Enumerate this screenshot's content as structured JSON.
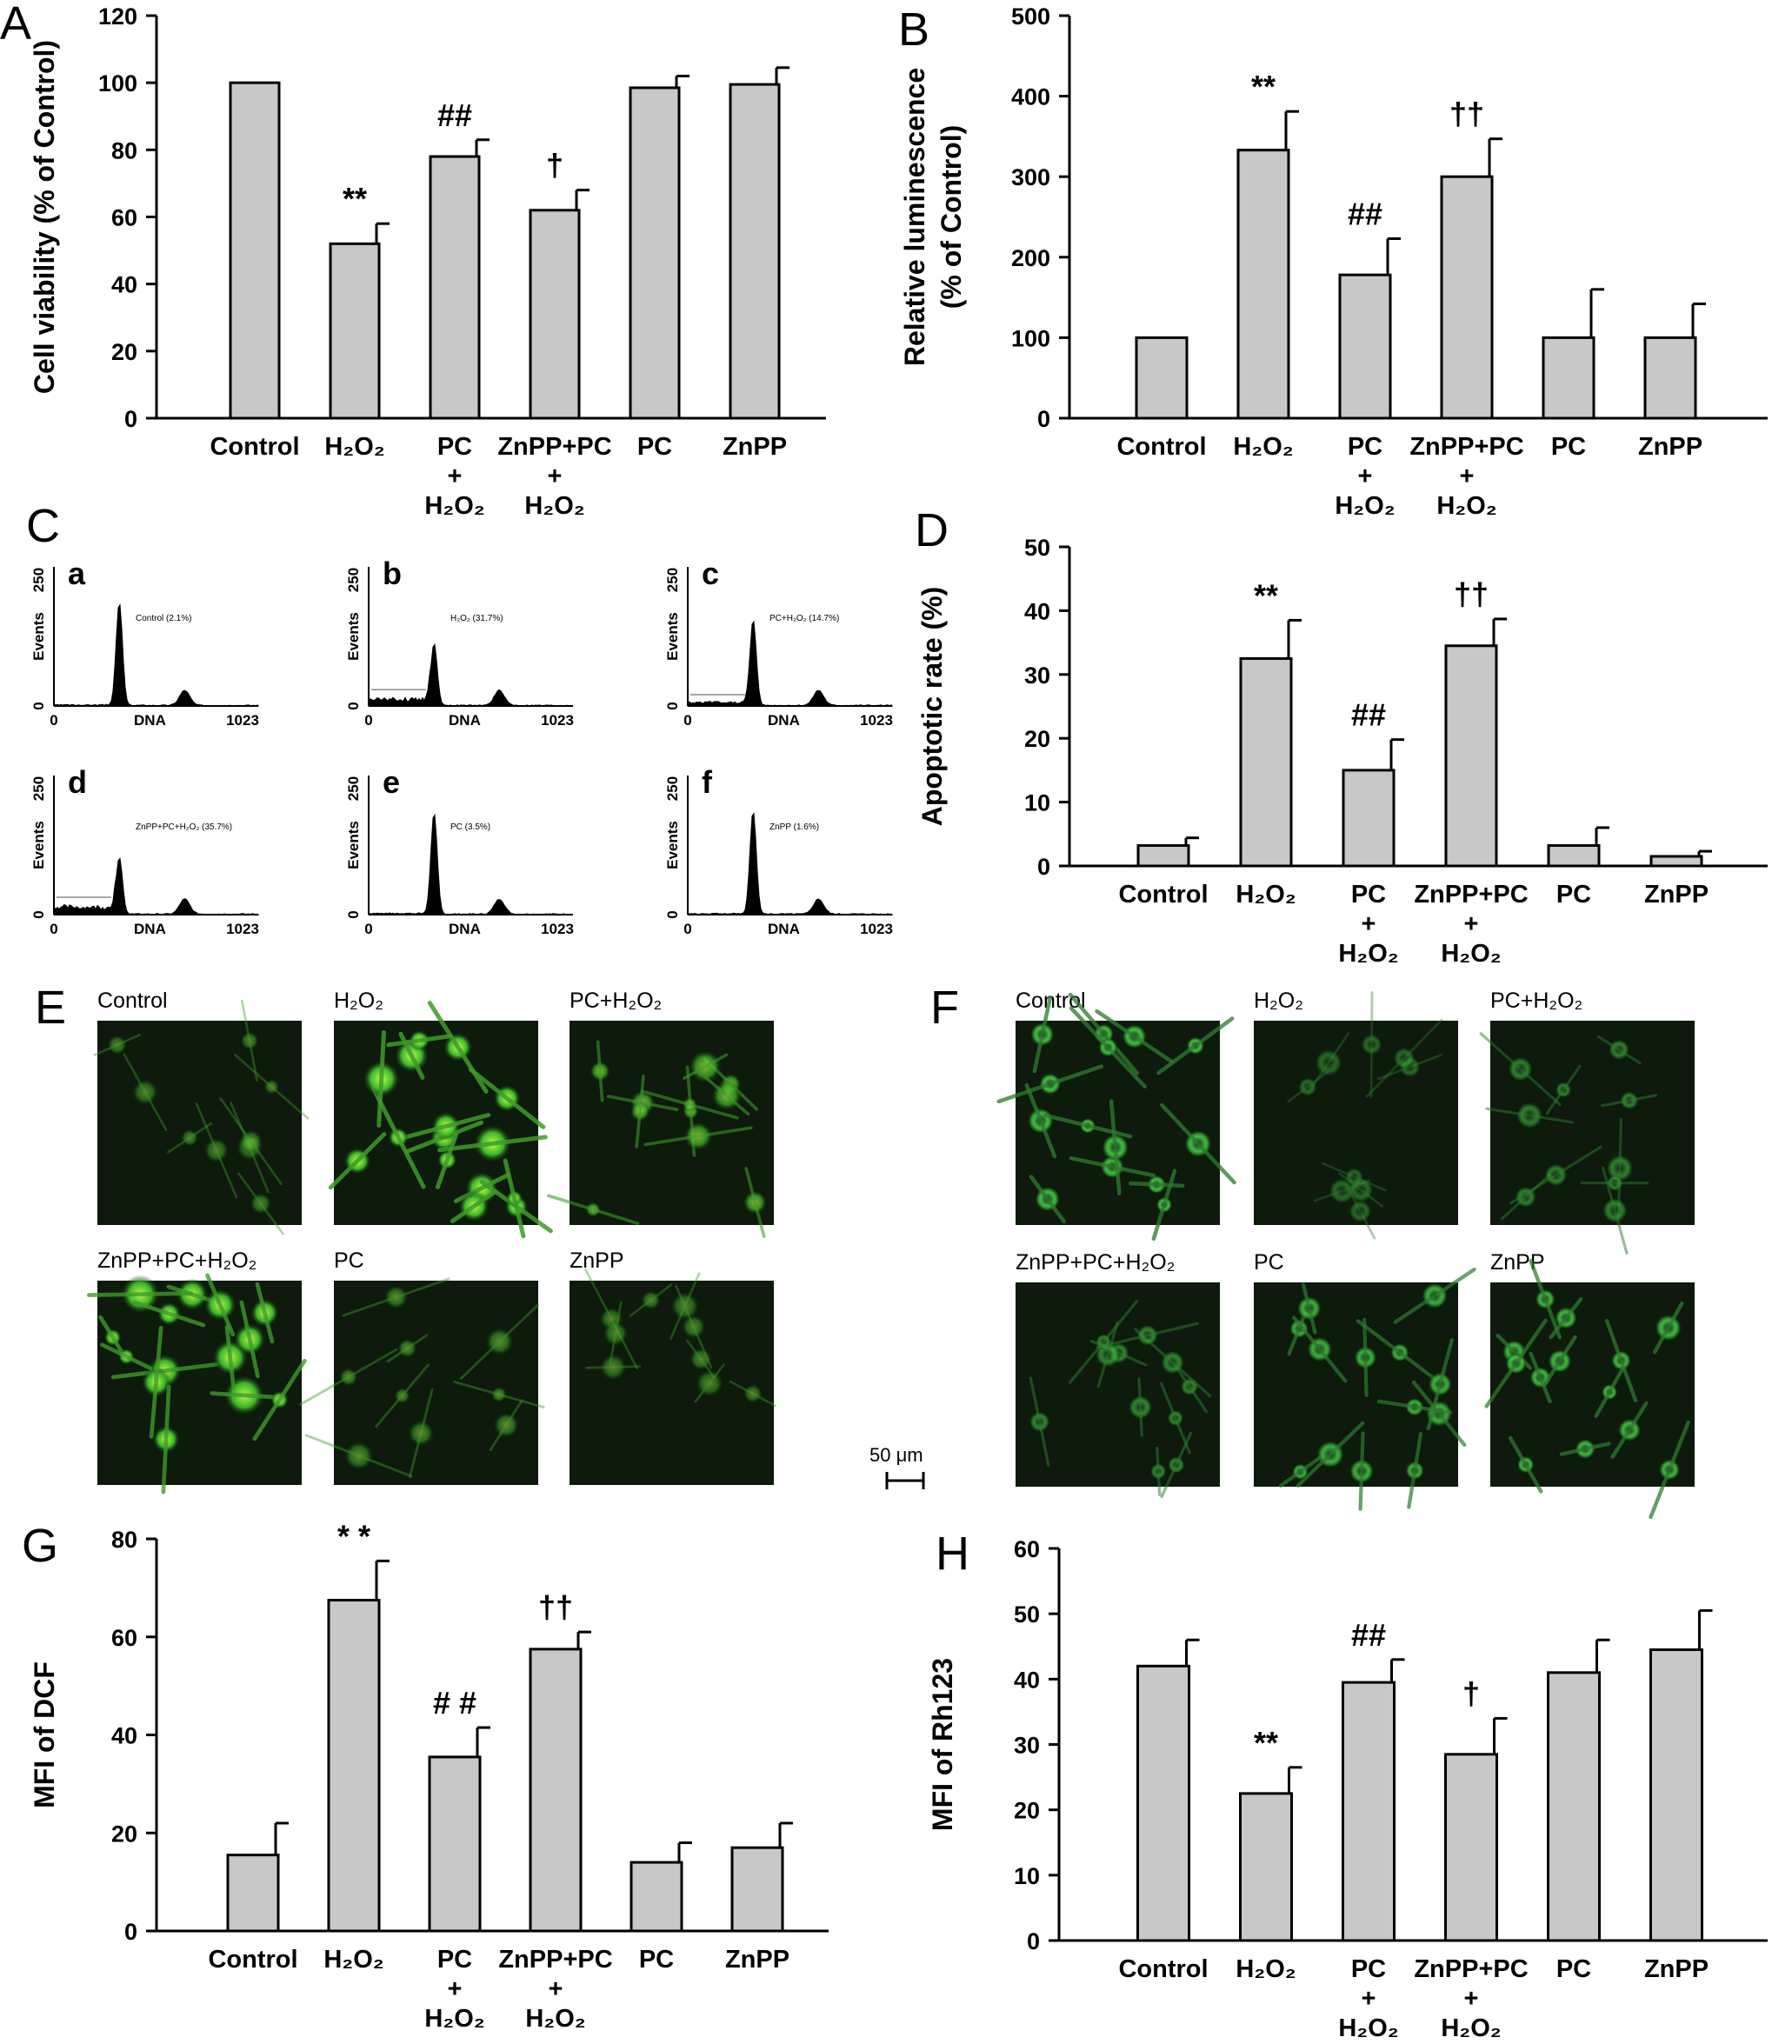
{
  "panels": {
    "A": "A",
    "B": "B",
    "C": "C",
    "D": "D",
    "E": "E",
    "F": "F",
    "G": "G",
    "H": "H"
  },
  "categories": [
    {
      "lines": [
        "Control"
      ]
    },
    {
      "lines": [
        "H₂O₂"
      ]
    },
    {
      "lines": [
        "PC",
        "+",
        "H₂O₂"
      ]
    },
    {
      "lines": [
        "ZnPP+PC",
        "+",
        "H₂O₂"
      ]
    },
    {
      "lines": [
        "PC"
      ]
    },
    {
      "lines": [
        "ZnPP"
      ]
    }
  ],
  "chart_data": [
    {
      "panel": "A",
      "type": "bar",
      "ylabel": "Cell viability  (% of Control)",
      "ylim": [
        0,
        120
      ],
      "yticks": [
        0,
        20,
        40,
        60,
        80,
        100,
        120
      ],
      "categories": [
        "Control",
        "H2O2",
        "PC + H2O2",
        "ZnPP+PC + H2O2",
        "PC",
        "ZnPP"
      ],
      "values": [
        100,
        52,
        78,
        62,
        98.5,
        99.5
      ],
      "errors": [
        0,
        6,
        5,
        6,
        3.5,
        5
      ],
      "annotations": [
        "",
        "**",
        "##",
        "†",
        "",
        ""
      ]
    },
    {
      "panel": "B",
      "type": "bar",
      "ylabel": "Relative luminescence",
      "ylabel2": "(% of Control)",
      "ylim": [
        0,
        500
      ],
      "yticks": [
        0,
        100,
        200,
        300,
        400,
        500
      ],
      "categories": [
        "Control",
        "H2O2",
        "PC + H2O2",
        "ZnPP+PC + H2O2",
        "PC",
        "ZnPP"
      ],
      "values": [
        100,
        333,
        178,
        300,
        100,
        100
      ],
      "errors": [
        0,
        48,
        45,
        47,
        60,
        42
      ],
      "annotations": [
        "",
        "**",
        "##",
        "††",
        "",
        ""
      ]
    },
    {
      "panel": "D",
      "type": "bar",
      "ylabel": "Apoptotic rate  (%)",
      "ylim": [
        0,
        50
      ],
      "yticks": [
        0,
        10,
        20,
        30,
        40,
        50
      ],
      "categories": [
        "Control",
        "H2O2",
        "PC + H2O2",
        "ZnPP+PC + H2O2",
        "PC",
        "ZnPP"
      ],
      "values": [
        3.2,
        32.5,
        15,
        34.5,
        3.2,
        1.5
      ],
      "errors": [
        1.2,
        6,
        4.8,
        4.2,
        2.8,
        0.8
      ],
      "annotations": [
        "",
        "**",
        "##",
        "††",
        "",
        ""
      ]
    },
    {
      "panel": "G",
      "type": "bar",
      "ylabel": "MFI of DCF",
      "ylim": [
        0,
        80
      ],
      "yticks": [
        0,
        20,
        40,
        60,
        80
      ],
      "categories": [
        "Control",
        "H2O2",
        "PC + H2O2",
        "ZnPP+PC + H2O2",
        "PC",
        "ZnPP"
      ],
      "values": [
        15.5,
        67.5,
        35.5,
        57.5,
        14,
        17
      ],
      "errors": [
        6.5,
        8,
        6,
        3.5,
        4,
        5
      ],
      "annotations": [
        "",
        "* *",
        "# #",
        "††",
        "",
        ""
      ]
    },
    {
      "panel": "H",
      "type": "bar",
      "ylabel": "MFI of Rh123",
      "ylim": [
        0,
        60
      ],
      "yticks": [
        0,
        10,
        20,
        30,
        40,
        50,
        60
      ],
      "categories": [
        "Control",
        "H2O2",
        "PC + H2O2",
        "ZnPP+PC + H2O2",
        "PC",
        "ZnPP"
      ],
      "values": [
        42,
        22.5,
        39.5,
        28.5,
        41,
        44.5
      ],
      "errors": [
        4,
        4,
        3.5,
        5.5,
        5,
        6
      ],
      "annotations": [
        "",
        "**",
        "##",
        "†",
        "",
        ""
      ]
    }
  ],
  "histograms": {
    "xlabel": "DNA",
    "ylabel": "Events",
    "xmin": "0",
    "xmax": "1023",
    "ymin": "0",
    "ymax": "250",
    "items": [
      {
        "letter": "a",
        "label": "Control (2.1%)",
        "apoptotic": 2.1
      },
      {
        "letter": "b",
        "label": "H₂O₂ (31.7%)",
        "apoptotic": 31.7
      },
      {
        "letter": "c",
        "label": "PC+H₂O₂ (14.7%)",
        "apoptotic": 14.7
      },
      {
        "letter": "d",
        "label": "ZnPP+PC+H₂O₂ (35.7%)",
        "apoptotic": 35.7
      },
      {
        "letter": "e",
        "label": "PC (3.5%)",
        "apoptotic": 3.5
      },
      {
        "letter": "f",
        "label": "ZnPP (1.6%)",
        "apoptotic": 1.6
      }
    ]
  },
  "images_E": {
    "titles": [
      "Control",
      "H₂O₂",
      "PC+H₂O₂",
      "ZnPP+PC+H₂O₂",
      "PC",
      "ZnPP"
    ],
    "brightness": [
      0.25,
      1.0,
      0.55,
      0.9,
      0.3,
      0.25
    ]
  },
  "images_F": {
    "titles": [
      "Control",
      "H₂O₂",
      "PC+H₂O₂",
      "ZnPP+PC+H₂O₂",
      "PC",
      "ZnPP"
    ],
    "brightness": [
      0.85,
      0.25,
      0.4,
      0.45,
      0.75,
      0.8
    ]
  },
  "scale_bar": "50 μm"
}
